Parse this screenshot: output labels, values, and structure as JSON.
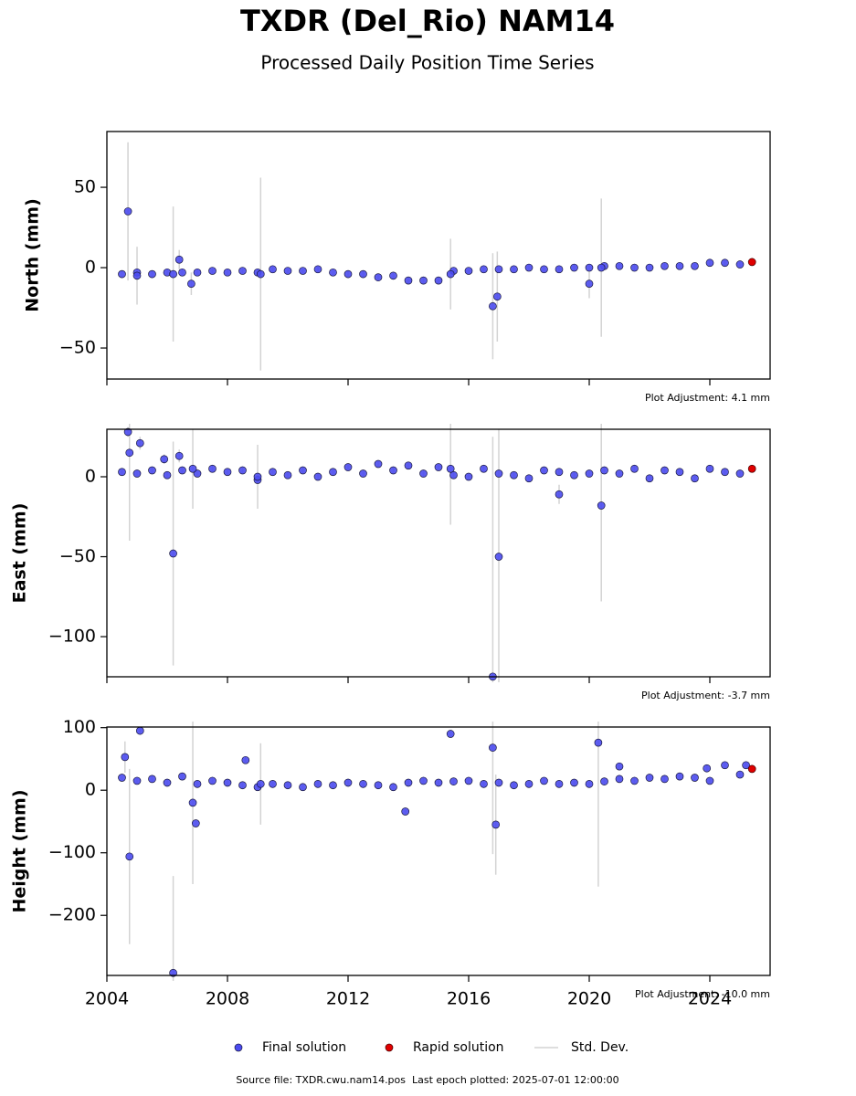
{
  "title": "TXDR (Del_Rio) NAM14",
  "subtitle": "Processed Daily Position Time Series",
  "source": "Source file: TXDR.cwu.nam14.pos  Last epoch plotted: 2025-07-01 12:00:00",
  "legend": [
    {
      "name": "Final solution",
      "color": "#4b4bf0"
    },
    {
      "name": "Rapid solution",
      "color": "#e00000"
    },
    {
      "name": "Std. Dev.",
      "color": "#d3d3d3"
    }
  ],
  "chart_data": [
    {
      "type": "scatter",
      "ylabel": "North (mm)",
      "annotation": "Plot Adjustment: 4.1 mm",
      "xlim": [
        2004,
        2026
      ],
      "xticks": [
        2004,
        2008,
        2012,
        2016,
        2020,
        2024
      ],
      "ylim": [
        -69.3,
        84.7
      ],
      "yticks": [
        {
          "value": -50,
          "label": "−50"
        },
        0,
        50
      ],
      "final": {
        "x": [
          2004.5,
          2005,
          2005.5,
          2006,
          2006.5,
          2007,
          2007.5,
          2008,
          2008.5,
          2009,
          2009.5,
          2010,
          2010.5,
          2011,
          2011.5,
          2012,
          2012.5,
          2013,
          2013.5,
          2014,
          2014.5,
          2015,
          2015.5,
          2016,
          2016.5,
          2017,
          2017.5,
          2018,
          2018.5,
          2019,
          2019.5,
          2020,
          2020.5,
          2021,
          2021.5,
          2022,
          2022.5,
          2023,
          2023.5,
          2024,
          2024.5,
          2025,
          2004.7,
          2006.4,
          2009.1,
          2006.2,
          2015.4,
          2016.8,
          2016.95,
          2020,
          2020.4,
          2005,
          2006.8
        ],
        "values": [
          -4,
          -3,
          -4,
          -3,
          -3,
          -3,
          -2,
          -3,
          -2,
          -3,
          -1,
          -2,
          -2,
          -1,
          -3,
          -4,
          -4,
          -6,
          -5,
          -8,
          -8,
          -8,
          -2,
          -2,
          -1,
          -1,
          -1,
          0,
          -1,
          -1,
          0,
          0,
          1,
          1,
          0,
          0,
          1,
          1,
          1,
          3,
          3,
          2,
          35,
          5,
          -4,
          -4,
          -4,
          -24,
          -18,
          -10,
          0,
          -5,
          -10
        ],
        "errors": [
          2,
          2,
          2,
          2,
          2,
          2,
          2,
          2,
          2,
          2,
          2,
          2,
          2,
          2,
          2,
          2,
          2,
          2,
          2,
          2,
          2,
          2,
          2,
          2,
          2,
          2,
          2,
          2,
          2,
          2,
          2,
          2,
          2,
          2,
          2,
          2,
          2,
          2,
          2,
          2,
          2,
          2,
          43,
          6,
          60,
          42,
          22,
          33,
          28,
          9,
          43,
          18,
          7
        ]
      },
      "rapid": {
        "x": [
          2025.4
        ],
        "values": [
          3.5
        ]
      }
    },
    {
      "type": "scatter",
      "ylabel": "East (mm)",
      "annotation": "Plot Adjustment: -3.7 mm",
      "xlim": [
        2004,
        2026
      ],
      "xticks": [
        2004,
        2008,
        2012,
        2016,
        2020,
        2024
      ],
      "ylim": [
        -125.1,
        29.7
      ],
      "yticks": [
        {
          "value": -100,
          "label": "−100"
        },
        {
          "value": -50,
          "label": "−50"
        },
        0
      ],
      "final": {
        "x": [
          2004.5,
          2005,
          2005.5,
          2006,
          2006.5,
          2007,
          2007.5,
          2008,
          2008.5,
          2009,
          2009.5,
          2010,
          2010.5,
          2011,
          2011.5,
          2012,
          2012.5,
          2013,
          2013.5,
          2014,
          2014.5,
          2015,
          2015.5,
          2016,
          2016.5,
          2017,
          2017.5,
          2018,
          2018.5,
          2019,
          2019.5,
          2020,
          2020.5,
          2021,
          2021.5,
          2022,
          2022.5,
          2023,
          2023.5,
          2024,
          2024.5,
          2025,
          2004.7,
          2004.75,
          2005.1,
          2005.9,
          2006.2,
          2006.4,
          2016.8,
          2017,
          2019,
          2020.4,
          2015.4,
          2009,
          2006.85
        ],
        "values": [
          3,
          2,
          4,
          1,
          4,
          2,
          5,
          3,
          4,
          -2,
          3,
          1,
          4,
          0,
          3,
          6,
          2,
          8,
          4,
          7,
          2,
          6,
          1,
          0,
          5,
          2,
          1,
          -1,
          4,
          3,
          1,
          2,
          4,
          2,
          5,
          -1,
          4,
          3,
          -1,
          5,
          3,
          2,
          28,
          15,
          21,
          11,
          -48,
          13,
          -125,
          -50,
          -11,
          -18,
          5,
          0,
          5
        ],
        "errors": [
          2,
          2,
          2,
          2,
          2,
          2,
          2,
          2,
          2,
          2,
          2,
          2,
          2,
          2,
          2,
          2,
          2,
          2,
          2,
          2,
          2,
          2,
          2,
          2,
          2,
          2,
          2,
          2,
          2,
          2,
          2,
          2,
          2,
          2,
          2,
          2,
          2,
          2,
          2,
          2,
          2,
          2,
          3,
          55,
          4,
          3,
          70,
          4,
          150,
          80,
          6,
          60,
          35,
          20,
          25
        ]
      },
      "rapid": {
        "x": [
          2025.4
        ],
        "values": [
          5
        ]
      }
    },
    {
      "type": "scatter",
      "ylabel": "Height (mm)",
      "annotation": "Plot Adjustment: -10.0 mm",
      "xlim": [
        2004,
        2026
      ],
      "xticks": [
        2004,
        2008,
        2012,
        2016,
        2020,
        2024
      ],
      "ylim": [
        -296,
        101
      ],
      "yticks": [
        {
          "value": -200,
          "label": "−200"
        },
        {
          "value": -100,
          "label": "−100"
        },
        0,
        100
      ],
      "final": {
        "x": [
          2004.5,
          2005,
          2005.5,
          2006,
          2006.5,
          2007,
          2007.5,
          2008,
          2008.5,
          2009,
          2009.5,
          2010,
          2010.5,
          2011,
          2011.5,
          2012,
          2012.5,
          2013,
          2013.5,
          2014,
          2014.5,
          2015,
          2015.5,
          2016,
          2016.5,
          2017,
          2017.5,
          2018,
          2018.5,
          2019,
          2019.5,
          2020,
          2020.5,
          2021,
          2021.5,
          2022,
          2022.5,
          2023,
          2023.5,
          2024,
          2024.5,
          2025,
          2004.6,
          2004.75,
          2005.1,
          2006.2,
          2006.85,
          2006.95,
          2008.6,
          2009.1,
          2013.9,
          2015.4,
          2016.8,
          2016.9,
          2020.3,
          2021,
          2023.9,
          2025.2
        ],
        "values": [
          20,
          15,
          18,
          12,
          22,
          10,
          15,
          12,
          8,
          5,
          10,
          8,
          5,
          10,
          8,
          12,
          10,
          8,
          5,
          12,
          15,
          12,
          14,
          15,
          10,
          12,
          8,
          10,
          15,
          10,
          12,
          10,
          14,
          18,
          15,
          20,
          18,
          22,
          20,
          15,
          40,
          25,
          53,
          -106,
          95,
          -292,
          -20,
          -53,
          48,
          10,
          -34,
          90,
          68,
          -55,
          76,
          38,
          35,
          40
        ],
        "errors": [
          6,
          6,
          6,
          6,
          6,
          6,
          6,
          6,
          6,
          6,
          6,
          6,
          6,
          6,
          6,
          6,
          6,
          6,
          6,
          6,
          6,
          6,
          6,
          6,
          6,
          6,
          6,
          6,
          6,
          6,
          6,
          6,
          6,
          6,
          6,
          6,
          6,
          6,
          6,
          6,
          6,
          6,
          25,
          140,
          6,
          155,
          130,
          6,
          6,
          65,
          6,
          6,
          170,
          80,
          230,
          6,
          6,
          6
        ]
      },
      "rapid": {
        "x": [
          2025.4
        ],
        "values": [
          34
        ]
      }
    }
  ]
}
